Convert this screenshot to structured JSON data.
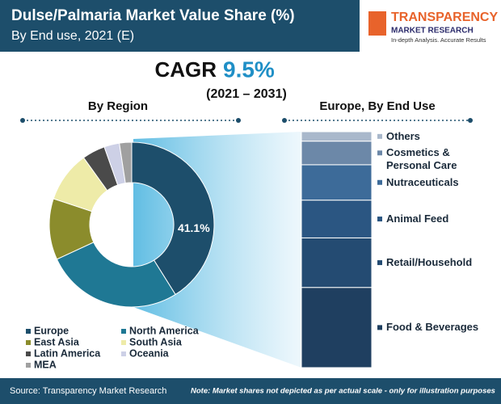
{
  "header": {
    "title": "Dulse/Palmaria Market Value Share (%)",
    "subtitle": "By End use, 2021 (E)"
  },
  "logo": {
    "name": "TRANSPARENCY",
    "line2": "MARKET RESEARCH",
    "tagline": "In-depth Analysis. Accurate Results"
  },
  "cagr": {
    "label": "CAGR",
    "value": "9.5%",
    "period": "(2021 – 2031)"
  },
  "chart_data": [
    {
      "type": "donut",
      "title": "By Region",
      "categories": [
        "Europe",
        "North America",
        "East Asia",
        "South Asia",
        "Latin America",
        "Oceania",
        "MEA"
      ],
      "values": [
        41.1,
        27,
        12,
        10,
        4.5,
        3,
        2.4
      ],
      "value_labels": [
        "41.1%",
        null,
        null,
        null,
        null,
        null,
        null
      ],
      "colors": [
        "#1d4e6b",
        "#1f7894",
        "#8b8c2c",
        "#eeeba8",
        "#4a4a4a",
        "#cdd0e6",
        "#a0a0a0"
      ]
    },
    {
      "type": "stacked_bar",
      "title": "Europe, By End Use",
      "categories": [
        "Food & Beverages",
        "Retail/Household",
        "Animal Feed",
        "Nutraceuticals",
        "Cosmetics & Personal Care",
        "Others"
      ],
      "values": [
        34,
        21,
        16,
        15,
        10,
        4
      ],
      "colors": [
        "#1f3f60",
        "#244b72",
        "#2b5682",
        "#3d6b99",
        "#6c88a8",
        "#a9b8cb"
      ]
    }
  ],
  "footer": {
    "source": "Source: Transparency Market Research",
    "note": "Note: Market shares not depicted as per actual scale - only for illustration purposes"
  }
}
